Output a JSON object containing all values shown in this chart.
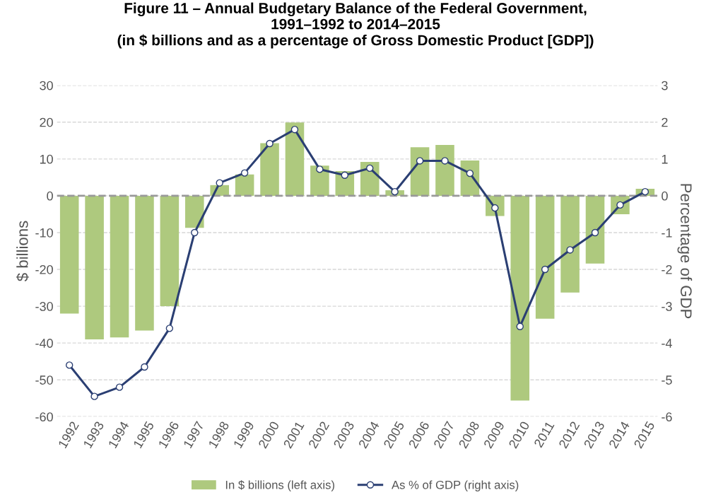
{
  "chart_data": {
    "type": "bar",
    "title": "Figure 11 – Annual Budgetary Balance of the Federal Government,\n1991–1992 to 2014–2015\n(in $ billions and as a percentage of Gross Domestic Product [GDP])",
    "ylabel": "$ billions",
    "y2label": "Percentage of GDP",
    "categories": [
      "1992",
      "1993",
      "1994",
      "1995",
      "1996",
      "1997",
      "1998",
      "1999",
      "2000",
      "2001",
      "2002",
      "2003",
      "2004",
      "2005",
      "2006",
      "2007",
      "2008",
      "2009",
      "2010",
      "2011",
      "2012",
      "2013",
      "2014",
      "2015"
    ],
    "series": [
      {
        "name": "In $ billions (left axis)",
        "color": "#aec97e",
        "values": [
          -32.0,
          -39.0,
          -38.5,
          -36.6,
          -30.0,
          -8.7,
          2.9,
          5.8,
          14.3,
          19.9,
          8.2,
          6.7,
          9.2,
          1.5,
          13.2,
          13.8,
          9.6,
          -5.5,
          -55.6,
          -33.4,
          -26.3,
          -18.4,
          -5.0,
          1.9
        ]
      },
      {
        "name": "As % of GDP (right axis)",
        "type": "line",
        "axis": "y2",
        "color": "#2b3f73",
        "marker": "circle",
        "values": [
          -4.6,
          -5.45,
          -5.2,
          -4.65,
          -3.6,
          -1.0,
          0.35,
          0.62,
          1.42,
          1.8,
          0.72,
          0.56,
          0.75,
          0.11,
          0.95,
          0.95,
          0.61,
          -0.33,
          -3.55,
          -2.0,
          -1.47,
          -1.0,
          -0.25,
          0.11
        ]
      }
    ],
    "ylim": [
      -60,
      30
    ],
    "yticks": [
      -60,
      -50,
      -40,
      -30,
      -20,
      -10,
      0,
      10,
      20,
      30
    ],
    "y2lim": [
      -6,
      3
    ],
    "y2ticks": [
      -6,
      -5,
      -4,
      -3,
      -2,
      -1,
      0,
      1,
      2,
      3
    ],
    "ref_lines": [
      {
        "axis": "y",
        "value": 0,
        "color": "#999999",
        "line_style": "dashed"
      }
    ],
    "grid": "y",
    "legend": "bottom"
  }
}
